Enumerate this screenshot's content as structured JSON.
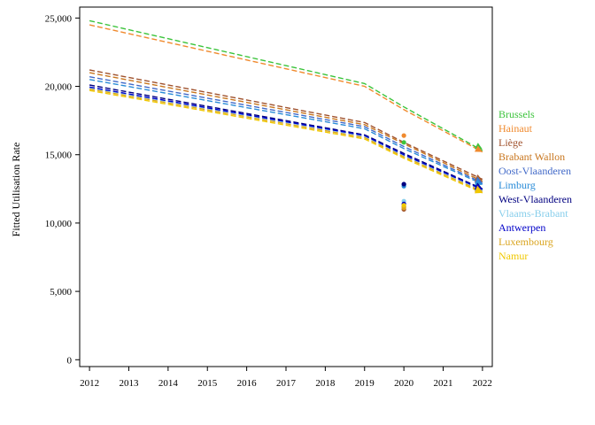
{
  "chart_data": {
    "type": "line",
    "title": "",
    "xlabel": "",
    "ylabel": "Fitted Utilisation Rate",
    "x": [
      2012,
      2013,
      2014,
      2015,
      2016,
      2017,
      2018,
      2019,
      2020,
      2021,
      2022
    ],
    "xlim": [
      2011.75,
      2022.25
    ],
    "ylim": [
      -500,
      25800
    ],
    "y_ticks": [
      0,
      5000,
      10000,
      15000,
      20000,
      25000
    ],
    "y_tick_labels": [
      "0",
      "5,000",
      "10,000",
      "15,000",
      "20,000",
      "25,000"
    ],
    "x_tick_labels": [
      "2012",
      "2013",
      "2014",
      "2015",
      "2016",
      "2017",
      "2018",
      "2019",
      "2020",
      "2021",
      "2022"
    ],
    "grid": false,
    "legend_position": "right",
    "line_style": "dashed",
    "series": [
      {
        "name": "Brussels",
        "color": "#3cc43c",
        "x": [
          2012,
          2019,
          2020,
          2022
        ],
        "values": [
          24800,
          20200,
          18500,
          15300
        ],
        "marker_2020": 15900,
        "marker_2022": 15400
      },
      {
        "name": "Hainaut",
        "color": "#f08a2e",
        "x": [
          2012,
          2019,
          2020,
          2022
        ],
        "values": [
          24500,
          20000,
          18300,
          15200
        ],
        "marker_2020": 16400,
        "marker_2022": 15200
      },
      {
        "name": "Liège",
        "color": "#a0522d",
        "x": [
          2012,
          2019,
          2020,
          2022
        ],
        "values": [
          21200,
          17350,
          15900,
          13200
        ],
        "marker_2020": 11000,
        "marker_2022": 13100
      },
      {
        "name": "Brabant Wallon",
        "color": "#c8761e",
        "x": [
          2012,
          2019,
          2020,
          2022
        ],
        "values": [
          21000,
          17200,
          15800,
          13050
        ],
        "marker_2020": 11200,
        "marker_2022": 13000
      },
      {
        "name": "Oost-Vlaanderen",
        "color": "#4169c8",
        "x": [
          2012,
          2019,
          2020,
          2022
        ],
        "values": [
          20700,
          17050,
          15600,
          12950
        ],
        "marker_2020": 12800,
        "marker_2022": 12950
      },
      {
        "name": "Limburg",
        "color": "#2a8cd8",
        "x": [
          2012,
          2019,
          2020,
          2022
        ],
        "values": [
          20500,
          16900,
          15450,
          12850
        ],
        "marker_2020": 12700,
        "marker_2022": 12800
      },
      {
        "name": "West-Vlaanderen",
        "color": "#000080",
        "x": [
          2012,
          2019,
          2020,
          2022
        ],
        "values": [
          20100,
          16450,
          15100,
          12500
        ],
        "marker_2020": 12850,
        "marker_2022": 12500
      },
      {
        "name": "Vlaams-Brabant",
        "color": "#87ceeb",
        "x": [
          2012,
          2019,
          2020,
          2022
        ],
        "values": [
          19900,
          16350,
          14950,
          12400
        ],
        "marker_2020": 11600,
        "marker_2022": 12400
      },
      {
        "name": "Antwerpen",
        "color": "#0000c8",
        "x": [
          2012,
          2019,
          2020,
          2022
        ],
        "values": [
          19950,
          16400,
          15000,
          12450
        ],
        "marker_2020": 11400,
        "marker_2022": 12450
      },
      {
        "name": "Luxembourg",
        "color": "#daa520",
        "x": [
          2012,
          2019,
          2020,
          2022
        ],
        "values": [
          19800,
          16250,
          14850,
          12300
        ],
        "marker_2020": 11100,
        "marker_2022": 12300
      },
      {
        "name": "Namur",
        "color": "#f0c800",
        "x": [
          2012,
          2019,
          2020,
          2022
        ],
        "values": [
          19700,
          16150,
          14750,
          12200
        ],
        "marker_2020": 11300,
        "marker_2022": 12200
      }
    ]
  }
}
